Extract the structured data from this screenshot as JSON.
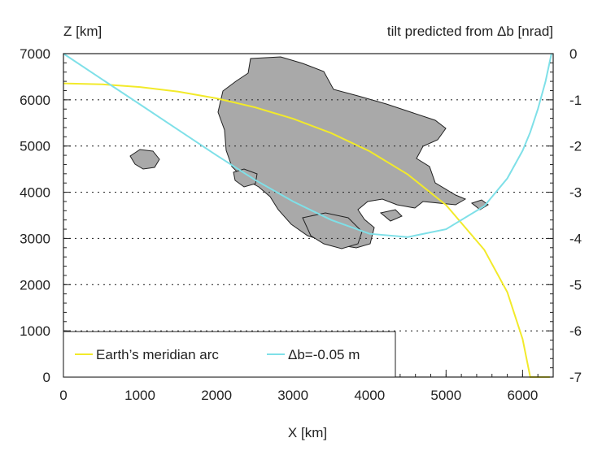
{
  "chart_data": {
    "type": "line",
    "x_axis": {
      "label": "X [km]",
      "range": [
        0,
        6400
      ],
      "ticks": [
        0,
        1000,
        2000,
        3000,
        4000,
        5000,
        6000
      ],
      "tick_labels": [
        "0",
        "1000",
        "2000",
        "3000",
        "4000",
        "5000",
        "6000"
      ],
      "minor_step": 200
    },
    "y_axis_left": {
      "label": "Z [km]",
      "range": [
        0,
        7000
      ],
      "ticks": [
        0,
        1000,
        2000,
        3000,
        4000,
        5000,
        6000,
        7000
      ],
      "tick_labels": [
        "0",
        "1000",
        "2000",
        "3000",
        "4000",
        "5000",
        "6000",
        "7000"
      ],
      "minor_step": 200
    },
    "y_axis_right": {
      "label": "tilt predicted from Δb [nrad]",
      "range": [
        -7,
        0
      ],
      "ticks": [
        0,
        -1,
        -2,
        -3,
        -4,
        -5,
        -6,
        -7
      ],
      "tick_labels": [
        "0",
        "-1",
        "-2",
        "-3",
        "-4",
        "-5",
        "-6",
        "-7"
      ],
      "minor_step": 0.2
    },
    "grid": {
      "horizontal_dotted": true,
      "at": [
        1000,
        2000,
        3000,
        4000,
        5000,
        6000
      ]
    },
    "series": [
      {
        "name": "Earth’s meridian arc",
        "axis": "left",
        "color": "#f2ea2a",
        "x": [
          0,
          500,
          1000,
          1500,
          2000,
          2500,
          3000,
          3500,
          4000,
          4500,
          5000,
          5500,
          5800,
          6000,
          6100,
          6200,
          6300,
          6356
        ],
        "y": [
          6357,
          6337,
          6278,
          6177,
          6032,
          5839,
          5592,
          5280,
          4887,
          4385,
          3723,
          2754,
          1838,
          823,
          0,
          0,
          0,
          0
        ]
      },
      {
        "name": "Δb=-0.05  m",
        "axis": "right",
        "color": "#7fe0e8",
        "x": [
          0,
          500,
          1000,
          1500,
          2000,
          2500,
          3000,
          3500,
          4000,
          4500,
          5000,
          5500,
          5800,
          6000,
          6100,
          6200,
          6300,
          6378
        ],
        "y": [
          0,
          -0.55,
          -1.1,
          -1.65,
          -2.2,
          -2.73,
          -3.2,
          -3.6,
          -3.9,
          -3.97,
          -3.8,
          -3.3,
          -2.7,
          -2.1,
          -1.7,
          -1.2,
          -0.6,
          0
        ]
      }
    ],
    "legend": {
      "placement": "bottom-left",
      "boxed": true
    },
    "background_image": "grey landmass map (decorative overlay)"
  }
}
